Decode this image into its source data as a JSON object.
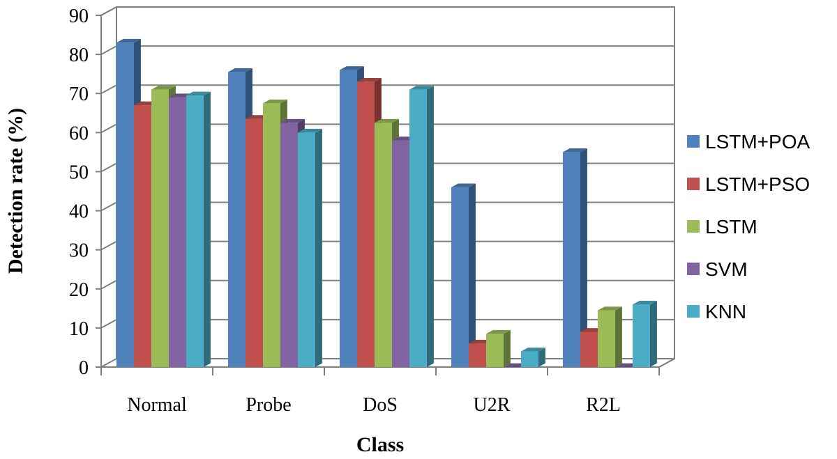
{
  "chart_data": {
    "type": "bar",
    "title": "",
    "xlabel": "Class",
    "ylabel": "Detection rate (%)",
    "ylim": [
      0,
      90
    ],
    "yticks": [
      0,
      10,
      20,
      30,
      40,
      50,
      60,
      70,
      80,
      90
    ],
    "grid": true,
    "legend_position": "right",
    "categories": [
      "Normal",
      "Probe",
      "DoS",
      "U2R",
      "R2L"
    ],
    "series": [
      {
        "name": "LSTM+POA",
        "color": "#4F81BD",
        "values": [
          83,
          75.5,
          76,
          46,
          55
        ]
      },
      {
        "name": "LSTM+PSO",
        "color": "#C0504D",
        "values": [
          67,
          63.5,
          73,
          6,
          9
        ]
      },
      {
        "name": "LSTM",
        "color": "#9BBB59",
        "values": [
          71,
          67.5,
          62.5,
          8.5,
          14.5
        ]
      },
      {
        "name": "SVM",
        "color": "#8064A2",
        "values": [
          69,
          62.5,
          58,
          0,
          0
        ]
      },
      {
        "name": "KNN",
        "color": "#4BACC6",
        "values": [
          69.5,
          60,
          71,
          4,
          16
        ]
      }
    ]
  }
}
